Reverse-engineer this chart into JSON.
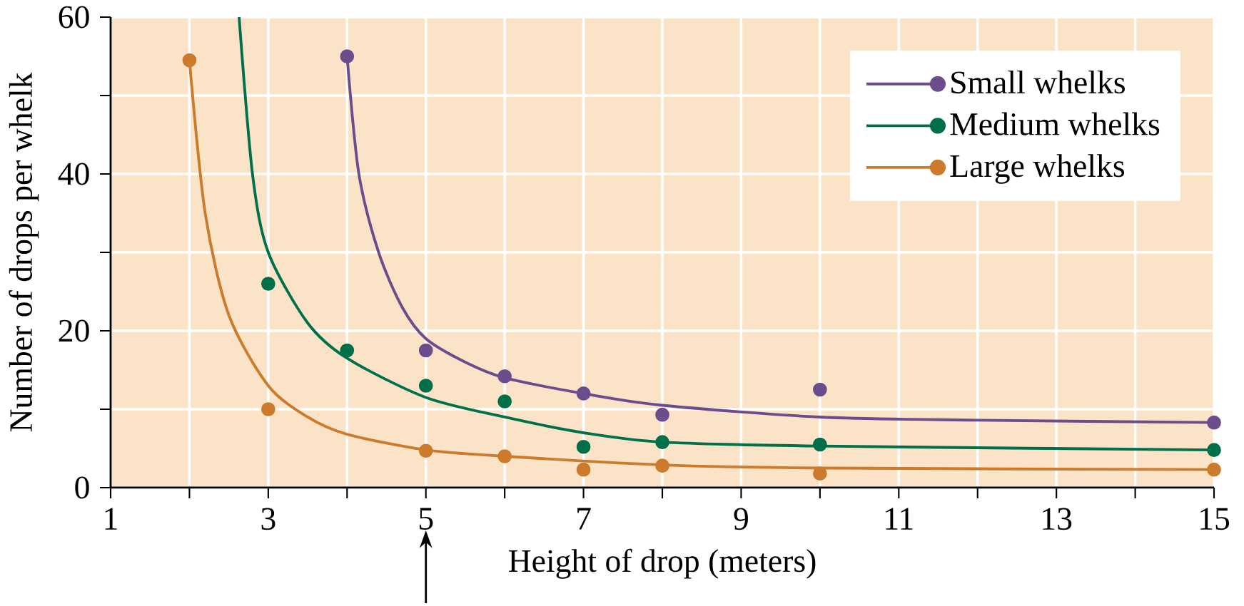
{
  "chart_data": {
    "type": "scatter",
    "xlabel": "Height of drop (meters)",
    "ylabel": "Number of drops per whelk",
    "xlim": [
      1,
      15
    ],
    "ylim": [
      0,
      60
    ],
    "xticks": [
      1,
      {
        "value": 2,
        "label": null
      },
      3,
      {
        "value": 4,
        "label": null
      },
      5,
      {
        "value": 6,
        "label": null
      },
      7,
      {
        "value": 8,
        "label": null
      },
      9,
      {
        "value": 10,
        "label": null
      },
      11,
      {
        "value": 12,
        "label": null
      },
      13,
      {
        "value": 14,
        "label": null
      },
      15
    ],
    "yticks": [
      0,
      {
        "value": 10,
        "label": null
      },
      20,
      {
        "value": 30,
        "label": null
      },
      40,
      {
        "value": 50,
        "label": null
      },
      60
    ],
    "grid": true,
    "legend": "top right",
    "marker": "circle",
    "series": [
      {
        "name": "Small whelks",
        "color": "#6b4c8c",
        "x": [
          4,
          5,
          6,
          7,
          8,
          10,
          15
        ],
        "values": [
          55,
          17.5,
          14.2,
          12,
          9.3,
          12.5,
          8.3
        ]
      },
      {
        "name": "Medium whelks",
        "color": "#00704a",
        "x": [
          3,
          4,
          5,
          6,
          7,
          8,
          10,
          15
        ],
        "values": [
          26,
          17.5,
          13,
          11,
          5.2,
          5.8,
          5.5,
          4.8
        ]
      },
      {
        "name": "Large whelks",
        "color": "#cc7a2b",
        "x": [
          2,
          3,
          5,
          6,
          7,
          8,
          10,
          15
        ],
        "values": [
          54.5,
          10,
          4.7,
          4,
          2.3,
          2.8,
          1.8,
          2.3
        ]
      },
      {
        "type": "line",
        "marker": "none",
        "color": "#6b4c8c",
        "x": [
          4,
          4.15,
          4.4,
          4.7,
          5,
          5.5,
          6,
          7,
          8,
          10,
          12,
          15
        ],
        "values": [
          55,
          40,
          30,
          23,
          19,
          16,
          14,
          12,
          10.5,
          9,
          8.6,
          8.3
        ]
      },
      {
        "type": "line",
        "marker": "none",
        "color": "#00704a",
        "x": [
          2.63,
          2.8,
          3,
          3.5,
          4,
          5,
          6,
          7,
          8,
          10,
          15
        ],
        "values": [
          60,
          40,
          30,
          21,
          16.5,
          11.5,
          9,
          7,
          5.8,
          5.3,
          4.8
        ]
      },
      {
        "type": "line",
        "marker": "none",
        "color": "#cc7a2b",
        "x": [
          2,
          2.2,
          2.5,
          3,
          3.5,
          4,
          5,
          6,
          8,
          10,
          15
        ],
        "values": [
          54.5,
          35,
          22,
          13,
          9,
          6.8,
          4.8,
          4,
          2.9,
          2.5,
          2.3
        ]
      }
    ]
  }
}
